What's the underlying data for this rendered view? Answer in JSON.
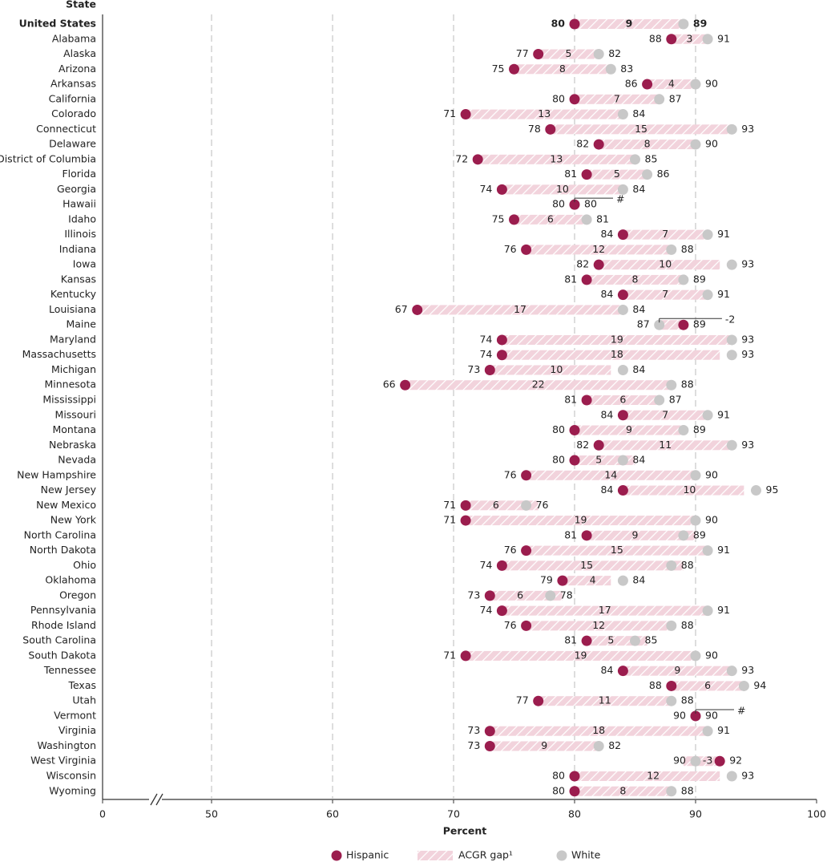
{
  "chart_data": {
    "type": "dumbbell",
    "y_label": "State",
    "x_label": "Percent",
    "categories": [
      "United States",
      "Alabama",
      "Alaska",
      "Arizona",
      "Arkansas",
      "California",
      "Colorado",
      "Connecticut",
      "Delaware",
      "District of Columbia",
      "Florida",
      "Georgia",
      "Hawaii",
      "Idaho",
      "Illinois",
      "Indiana",
      "Iowa",
      "Kansas",
      "Kentucky",
      "Louisiana",
      "Maine",
      "Maryland",
      "Massachusetts",
      "Michigan",
      "Minnesota",
      "Mississippi",
      "Missouri",
      "Montana",
      "Nebraska",
      "Nevada",
      "New Hampshire",
      "New Jersey",
      "New Mexico",
      "New York",
      "North Carolina",
      "North Dakota",
      "Ohio",
      "Oklahoma",
      "Oregon",
      "Pennsylvania",
      "Rhode Island",
      "South Carolina",
      "South Dakota",
      "Tennessee",
      "Texas",
      "Utah",
      "Vermont",
      "Virginia",
      "Washington",
      "West Virginia",
      "Wisconsin",
      "Wyoming"
    ],
    "series": [
      {
        "name": "Hispanic",
        "color": "#9b1d4e",
        "values": [
          80,
          88,
          77,
          75,
          86,
          80,
          71,
          78,
          82,
          72,
          81,
          74,
          80,
          75,
          84,
          76,
          82,
          81,
          84,
          67,
          89,
          74,
          74,
          73,
          66,
          81,
          84,
          80,
          82,
          80,
          76,
          84,
          71,
          71,
          81,
          76,
          74,
          79,
          73,
          74,
          76,
          81,
          71,
          84,
          88,
          77,
          90,
          73,
          73,
          92,
          80,
          80
        ]
      },
      {
        "name": "ACGR gap¹",
        "color": "#f2d3dc",
        "values": [
          9,
          3,
          5,
          8,
          4,
          7,
          13,
          15,
          8,
          13,
          5,
          10,
          0,
          6,
          7,
          12,
          10,
          8,
          7,
          17,
          -2,
          19,
          18,
          10,
          22,
          6,
          7,
          9,
          11,
          5,
          14,
          10,
          6,
          19,
          9,
          15,
          15,
          4,
          6,
          17,
          12,
          5,
          19,
          9,
          6,
          11,
          0,
          18,
          9,
          -3,
          12,
          8
        ],
        "value_labels": [
          "9",
          "3",
          "5",
          "8",
          "4",
          "7",
          "13",
          "15",
          "8",
          "13",
          "5",
          "10",
          "#",
          "6",
          "7",
          "12",
          "10",
          "8",
          "7",
          "17",
          "-2",
          "19",
          "18",
          "10",
          "22",
          "6",
          "7",
          "9",
          "11",
          "5",
          "14",
          "10",
          "6",
          "19",
          "9",
          "15",
          "15",
          "4",
          "6",
          "17",
          "12",
          "5",
          "19",
          "9",
          "6",
          "11",
          "#",
          "18",
          "9",
          "-3",
          "12",
          "8"
        ]
      },
      {
        "name": "White",
        "color": "#c8c8c8",
        "values": [
          89,
          91,
          82,
          83,
          90,
          87,
          84,
          93,
          90,
          85,
          86,
          84,
          80,
          81,
          91,
          88,
          93,
          89,
          91,
          84,
          87,
          93,
          93,
          84,
          88,
          87,
          91,
          89,
          93,
          84,
          90,
          95,
          76,
          90,
          89,
          91,
          88,
          84,
          78,
          91,
          88,
          85,
          90,
          93,
          94,
          88,
          90,
          91,
          82,
          90,
          93,
          88
        ]
      }
    ],
    "xlim": [
      0,
      100
    ],
    "xticks": [
      0,
      50,
      60,
      70,
      80,
      90,
      100
    ],
    "grid": true,
    "axis_break": true
  }
}
